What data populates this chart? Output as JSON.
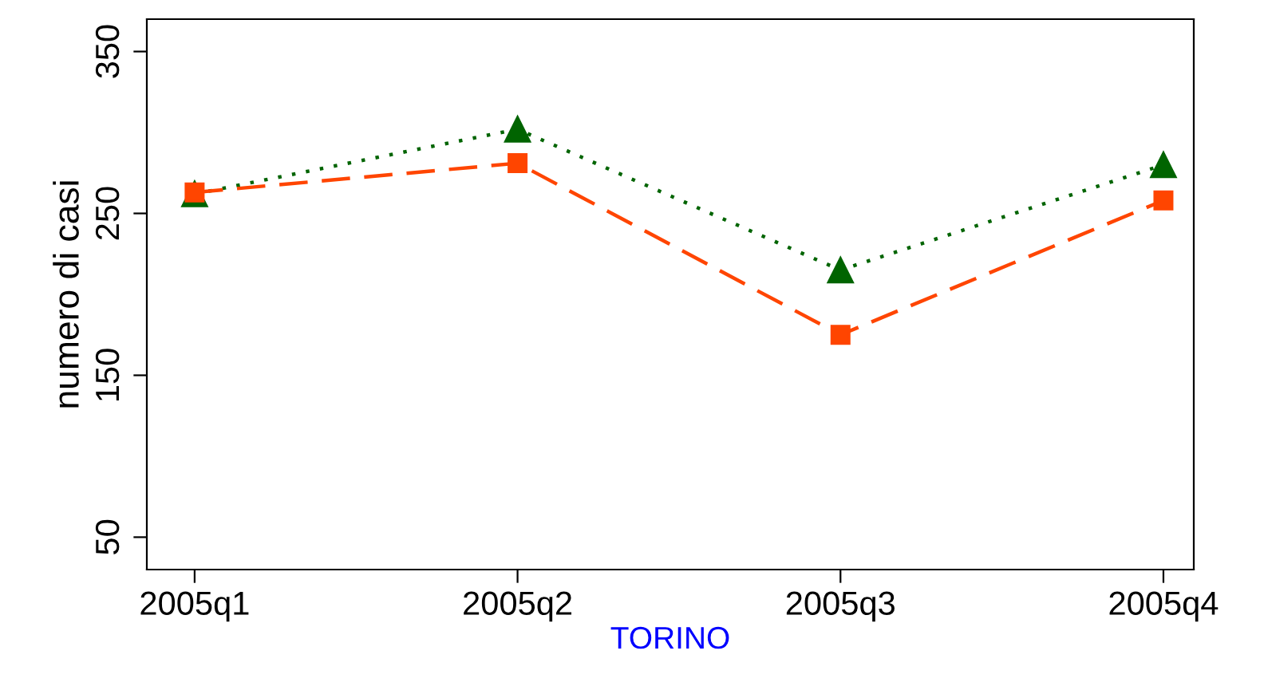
{
  "chart_data": {
    "type": "line",
    "xlabel": "TORINO",
    "ylabel": "numero di casi",
    "categories": [
      "2005q1",
      "2005q2",
      "2005q3",
      "2005q4"
    ],
    "series": [
      {
        "color": "#006400",
        "values": [
          262,
          302,
          215,
          280
        ],
        "marker": "triangle",
        "line_style": "dotted"
      },
      {
        "color": "#ff4500",
        "values": [
          263,
          281,
          175,
          258
        ],
        "marker": "square",
        "line_style": "dashed"
      }
    ],
    "ylim": [
      30,
      370
    ],
    "yticks": [
      50,
      150,
      250,
      350
    ],
    "grid": false,
    "legend": false
  }
}
